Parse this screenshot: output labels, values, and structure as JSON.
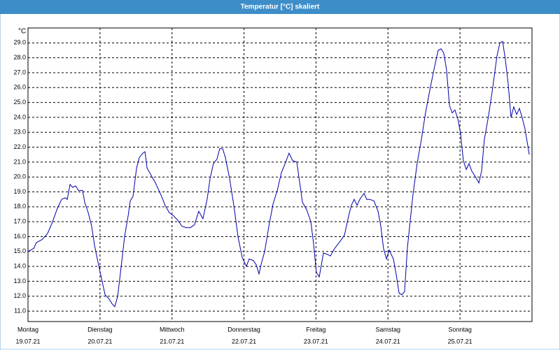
{
  "chart_data": {
    "type": "line",
    "title": "Temperatur [°C] skaliert",
    "y_unit": "°C",
    "x": [
      0,
      1.9,
      2.8,
      4.7,
      6.5,
      8.2,
      9.8,
      11.2,
      12.4,
      13.1,
      14,
      14.9,
      15.9,
      16.8,
      18.2,
      18.9,
      20.1,
      21.2,
      22.2,
      23.3,
      24.5,
      25.7,
      27.1,
      28,
      28.9,
      29.9,
      31,
      32.2,
      33.4,
      34.1,
      35,
      36.2,
      37.1,
      38.3,
      39,
      39.7,
      41.1,
      42.5,
      44.3,
      45.7,
      47.1,
      48.5,
      49.9,
      51.3,
      52.7,
      54.1,
      55.5,
      56.9,
      58.3,
      59.7,
      60.7,
      61.8,
      63,
      63.9,
      64.9,
      65.8,
      67.2,
      68.6,
      70,
      71.4,
      72.8,
      73.7,
      75.1,
      76.1,
      77,
      77.9,
      78.9,
      80.3,
      81.7,
      83.1,
      84.5,
      85.9,
      87,
      88.2,
      89.6,
      90.5,
      91.5,
      92.9,
      94.3,
      95.2,
      96.1,
      97.1,
      98.5,
      99.9,
      100.8,
      102.2,
      104.1,
      105.5,
      106.9,
      107.8,
      108.7,
      109.7,
      110.6,
      112,
      112.9,
      113.9,
      115.3,
      116.7,
      117.6,
      118.5,
      119.5,
      120.4,
      121.8,
      122.7,
      123.7,
      124.6,
      125.5,
      126.5,
      128.3,
      129.7,
      131.1,
      132.5,
      133.9,
      135.3,
      136.7,
      137.7,
      138.6,
      139.5,
      140.5,
      141.4,
      142.3,
      143.3,
      144.2,
      145.1,
      146.1,
      147,
      147.9,
      148.9,
      150.3,
      151.2,
      152.1,
      153.5,
      154.9,
      156.3,
      157.3,
      158.2,
      159.1,
      160.1,
      161,
      161.9,
      162.9,
      163.8,
      164.7,
      165.7,
      167.1
    ],
    "series": [
      {
        "color": "#0000aa",
        "values": [
          15.0,
          15.2,
          15.6,
          15.8,
          16.2,
          17.0,
          17.9,
          18.5,
          18.6,
          18.5,
          19.5,
          19.3,
          19.4,
          19.1,
          19.1,
          18.3,
          17.6,
          16.7,
          15.4,
          14.3,
          13.2,
          12.1,
          11.8,
          11.5,
          11.3,
          12.0,
          13.9,
          16.0,
          17.4,
          18.4,
          18.7,
          20.6,
          21.3,
          21.6,
          21.7,
          20.6,
          20.1,
          19.6,
          18.8,
          18.1,
          17.6,
          17.4,
          17.1,
          16.7,
          16.6,
          16.6,
          16.8,
          17.7,
          17.2,
          18.5,
          19.9,
          20.9,
          21.2,
          21.9,
          21.9,
          21.3,
          19.9,
          18.1,
          16.0,
          14.6,
          14.0,
          14.5,
          14.4,
          14.1,
          13.5,
          14.3,
          15.0,
          16.7,
          18.2,
          19.1,
          20.3,
          21.0,
          21.6,
          21.1,
          21.0,
          19.7,
          18.3,
          17.8,
          17.0,
          15.5,
          13.6,
          13.3,
          14.9,
          14.8,
          14.7,
          15.2,
          15.7,
          16.1,
          17.4,
          18.1,
          18.5,
          18.1,
          18.5,
          18.9,
          18.5,
          18.5,
          18.4,
          17.7,
          16.7,
          15.2,
          14.5,
          15.1,
          14.5,
          13.5,
          12.2,
          12.1,
          12.3,
          15.3,
          18.8,
          20.9,
          22.5,
          24.3,
          25.8,
          27.2,
          28.5,
          28.6,
          28.3,
          27.2,
          24.8,
          24.3,
          24.5,
          23.9,
          22.9,
          21.1,
          20.5,
          20.9,
          20.4,
          20.1,
          19.6,
          20.4,
          22.5,
          24.1,
          26.0,
          28.1,
          29.0,
          29.1,
          27.9,
          26.2,
          24.0,
          24.7,
          24.2,
          24.6,
          24.0,
          23.2,
          21.5
        ]
      }
    ],
    "xlim": [
      0,
      168
    ],
    "xticks": [
      {
        "value": 0,
        "label": "Montag",
        "date": "19.07.21"
      },
      {
        "value": 24,
        "label": "Dienstag",
        "date": "20.07.21"
      },
      {
        "value": 48,
        "label": "Mittwoch",
        "date": "21.07.21"
      },
      {
        "value": 72,
        "label": "Donnerstag",
        "date": "22.07.21"
      },
      {
        "value": 96,
        "label": "Freitag",
        "date": "23.07.21"
      },
      {
        "value": 120,
        "label": "Samstag",
        "date": "24.07.21"
      },
      {
        "value": 144,
        "label": "Sonntag",
        "date": "25.07.21"
      }
    ],
    "ylim": [
      10.3,
      30.0
    ],
    "yticks": [
      {
        "value": 11,
        "label": "11.0"
      },
      {
        "value": 12,
        "label": "12.0"
      },
      {
        "value": 13,
        "label": "13.0"
      },
      {
        "value": 14,
        "label": "14.0"
      },
      {
        "value": 15,
        "label": "15.0"
      },
      {
        "value": 16,
        "label": "16.0"
      },
      {
        "value": 17,
        "label": "17.0"
      },
      {
        "value": 18,
        "label": "18.0"
      },
      {
        "value": 19,
        "label": "19.0"
      },
      {
        "value": 20,
        "label": "20.0"
      },
      {
        "value": 21,
        "label": "21.0"
      },
      {
        "value": 22,
        "label": "22.0"
      },
      {
        "value": 23,
        "label": "23.0"
      },
      {
        "value": 24,
        "label": "24.0"
      },
      {
        "value": 25,
        "label": "25.0"
      },
      {
        "value": 26,
        "label": "26.0"
      },
      {
        "value": 27,
        "label": "27.0"
      },
      {
        "value": 28,
        "label": "28.0"
      },
      {
        "value": 29,
        "label": "29.0"
      }
    ],
    "grid": true
  }
}
